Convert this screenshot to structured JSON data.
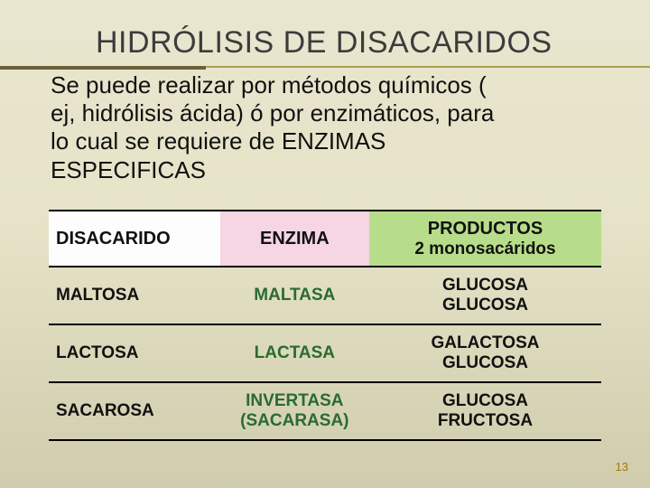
{
  "title": "HIDRÓLISIS DE DISACARIDOS",
  "intro": {
    "line1": "Se puede realizar por métodos químicos (",
    "line2": "ej, hidrólisis ácida) ó por enzimáticos, para",
    "line3": "lo cual se requiere de ENZIMAS",
    "line4": "ESPECIFICAS"
  },
  "table": {
    "headers": {
      "disacarido": "DISACARIDO",
      "enzima": "ENZIMA",
      "productos": "PRODUCTOS",
      "productos_sub": "2 monosacáridos"
    },
    "rows": [
      {
        "disacarido": "MALTOSA",
        "enzima_lines": [
          "MALTASA"
        ],
        "enzima_color": "#2a6b2f",
        "productos": [
          "GLUCOSA",
          "GLUCOSA"
        ]
      },
      {
        "disacarido": "LACTOSA",
        "enzima_lines": [
          "LACTASA"
        ],
        "enzima_color": "#2a6b2f",
        "productos": [
          "GALACTOSA",
          "GLUCOSA"
        ]
      },
      {
        "disacarido": "SACAROSA",
        "enzima_lines": [
          "INVERTASA",
          "(SACARASA)"
        ],
        "enzima_color": "#2a6b2f",
        "productos": [
          "GLUCOSA",
          "FRUCTOSA"
        ]
      }
    ],
    "header_bg": {
      "disacarido": "#fdfdfd",
      "enzima": "#f5d6e2",
      "productos": "#b8dd8a"
    }
  },
  "page_number": "13",
  "colors": {
    "bg_top": "#e9e6cf",
    "bg_bottom": "#d0ccad",
    "title_line_dark": "#6a6138",
    "title_line_light": "#a99f52"
  }
}
